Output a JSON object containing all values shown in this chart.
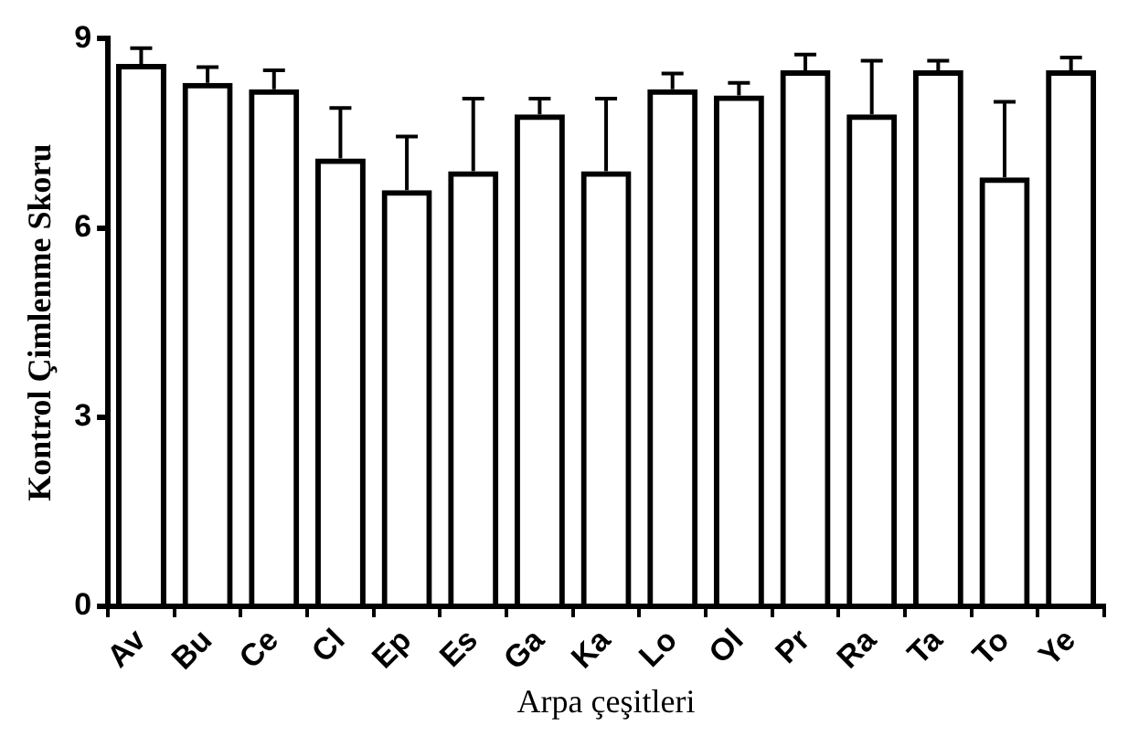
{
  "chart_data": {
    "type": "bar",
    "xlabel": "Arpa çeşitleri",
    "ylabel": "Kontrol Çimlenme Skoru",
    "categories": [
      "Av",
      "Bu",
      "Ce",
      "Cl",
      "Ep",
      "Es",
      "Ga",
      "Ka",
      "Lo",
      "Ol",
      "Pr",
      "Ra",
      "Ta",
      "To",
      "Ye"
    ],
    "values": [
      8.6,
      8.3,
      8.2,
      7.1,
      6.6,
      6.9,
      7.8,
      6.9,
      8.2,
      8.1,
      8.5,
      7.8,
      8.5,
      6.8,
      8.5
    ],
    "errors": [
      [
        8.6,
        8.85
      ],
      [
        8.3,
        8.55
      ],
      [
        8.2,
        8.5
      ],
      [
        7.1,
        7.9
      ],
      [
        6.6,
        7.45
      ],
      [
        6.9,
        8.05
      ],
      [
        7.8,
        8.05
      ],
      [
        6.9,
        8.05
      ],
      [
        8.2,
        8.45
      ],
      [
        8.1,
        8.3
      ],
      [
        8.5,
        8.75
      ],
      [
        7.8,
        8.65
      ],
      [
        8.5,
        8.65
      ],
      [
        6.8,
        8.0
      ],
      [
        8.5,
        8.7
      ]
    ],
    "color": "#000000",
    "ylim": [
      0,
      9
    ],
    "yticks": [
      0,
      3,
      6,
      9
    ]
  }
}
